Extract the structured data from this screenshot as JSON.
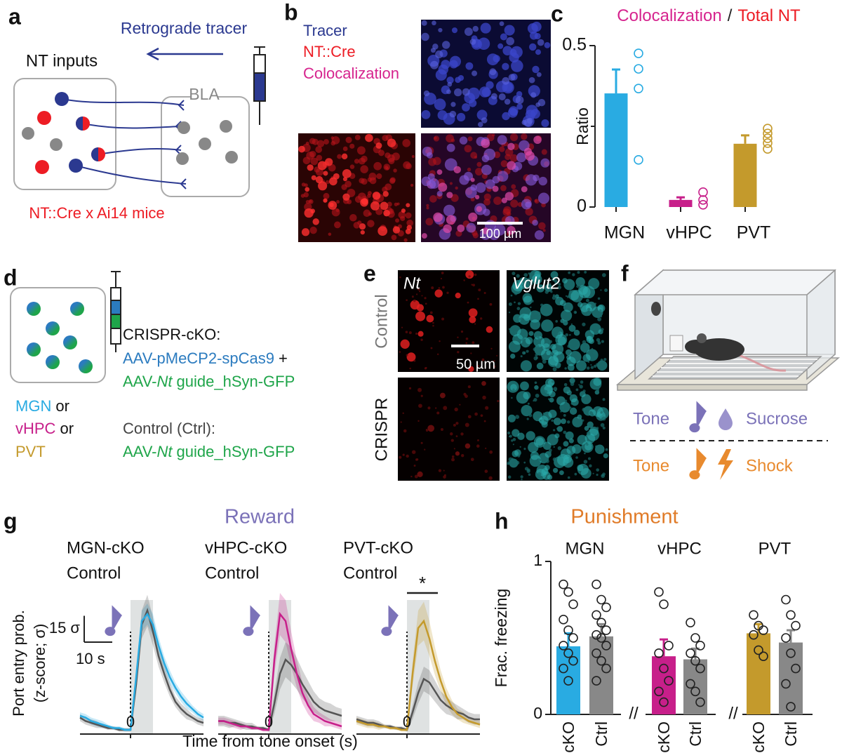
{
  "panels": {
    "a": {
      "label": "a",
      "tracer": "Retrograde tracer",
      "inputs": "NT inputs",
      "region": "BLA",
      "mice": "NT::Cre x Ai14 mice"
    },
    "b": {
      "label": "b",
      "legend": [
        "Tracer",
        "NT::Cre",
        "Colocalization"
      ],
      "scale": "100 µm"
    },
    "c": {
      "label": "c"
    },
    "d": {
      "label": "d",
      "cko": "CRISPR-cKO:",
      "cas9": "AAV-pMeCP2-spCas9",
      "plus": "+",
      "guide": [
        "AAV-",
        "Nt",
        "guide_hSyn-GFP"
      ],
      "regions": [
        "MGN",
        "vHPC",
        "PVT"
      ],
      "or": "or",
      "control": "Control (Ctrl):"
    },
    "e": {
      "label": "e",
      "genes": [
        "Nt",
        "Vglut2"
      ],
      "rows": [
        "Control",
        "CRISPR"
      ],
      "scale": "50 µm"
    },
    "f": {
      "label": "f",
      "tone": "Tone",
      "sucrose": "Sucrose",
      "shock": "Shock"
    },
    "g": {
      "label": "g",
      "title": "Reward",
      "xlabel": "Time from tone onset (s)",
      "ylabel": [
        "Port entry prob.",
        "(z-score; σ)"
      ]
    },
    "h": {
      "label": "h",
      "title": "Punishment"
    }
  },
  "chart_data": [
    {
      "type": "bar",
      "title_parts": [
        {
          "text": "Colocalization",
          "color": "#d6248e"
        },
        {
          "text": "/",
          "color": "#222222"
        },
        {
          "text": "Total NT",
          "color": "#ed1c24"
        }
      ],
      "categories": [
        "MGN",
        "vHPC",
        "PVT"
      ],
      "colors": [
        "#29abe2",
        "#c71f8a",
        "#c49a2c"
      ],
      "values": [
        0.352,
        0.022,
        0.196
      ],
      "errors": [
        0.074,
        0.008,
        0.026
      ],
      "points": [
        [
          0.476,
          0.428,
          0.367,
          0.146
        ],
        [
          0.046,
          0.022,
          0.007
        ],
        [
          0.243,
          0.228,
          0.213,
          0.198,
          0.18
        ]
      ],
      "ylabel": "Ratio",
      "ylim": [
        0,
        0.5
      ],
      "yticks": [
        0,
        0.5
      ],
      "minor_yticks": [
        0.25
      ]
    },
    {
      "type": "line",
      "x": [
        -18,
        -16,
        -14,
        -12,
        -10,
        -8,
        -6,
        -4,
        -2,
        0,
        2,
        4,
        6,
        8,
        10,
        12,
        14,
        16,
        18,
        20,
        22,
        24,
        26
      ],
      "xlim": [
        -18,
        26
      ],
      "ylim": [
        -3,
        72
      ],
      "xticks": [
        0
      ],
      "tone_window": [
        0,
        8
      ],
      "series": [
        {
          "name": "MGN-cKO",
          "color": "#29abe2",
          "values": [
            8,
            7,
            5,
            4,
            3,
            2,
            1,
            1,
            0,
            0,
            30,
            62,
            66,
            60,
            48,
            38,
            30,
            24,
            19,
            15,
            12,
            9,
            7
          ],
          "errors": [
            2,
            2,
            2,
            2,
            2,
            1,
            1,
            1,
            1,
            1,
            4,
            6,
            6,
            6,
            5,
            4,
            4,
            3,
            3,
            3,
            2,
            2,
            2
          ]
        },
        {
          "name": "Control",
          "color": "#555555",
          "values": [
            7,
            5,
            4,
            3,
            2,
            1,
            1,
            0,
            0,
            0,
            26,
            60,
            68,
            56,
            42,
            32,
            23,
            16,
            12,
            9,
            7,
            5,
            4
          ],
          "errors": [
            2,
            2,
            2,
            2,
            1,
            1,
            1,
            1,
            1,
            1,
            5,
            8,
            9,
            8,
            6,
            5,
            4,
            3,
            3,
            3,
            2,
            2,
            2
          ]
        }
      ],
      "scalebar": {
        "y": 15,
        "y_label": "15 σ",
        "x": 10,
        "x_label": "10 s"
      }
    },
    {
      "type": "line",
      "x": [
        -18,
        -16,
        -14,
        -12,
        -10,
        -8,
        -6,
        -4,
        -2,
        0,
        2,
        4,
        6,
        8,
        10,
        12,
        14,
        16,
        18,
        20,
        22,
        24,
        26
      ],
      "xlim": [
        -18,
        26
      ],
      "ylim": [
        -3,
        72
      ],
      "xticks": [
        0
      ],
      "tone_window": [
        0,
        8
      ],
      "series": [
        {
          "name": "vHPC-cKO",
          "color": "#c71f8a",
          "values": [
            5,
            5,
            4,
            3,
            2,
            2,
            1,
            1,
            0,
            0,
            40,
            66,
            62,
            46,
            32,
            21,
            14,
            9,
            7,
            5,
            4,
            3,
            2
          ],
          "errors": [
            2,
            2,
            2,
            2,
            2,
            1,
            1,
            1,
            1,
            1,
            8,
            12,
            12,
            10,
            8,
            6,
            5,
            4,
            3,
            3,
            2,
            2,
            2
          ]
        },
        {
          "name": "Control",
          "color": "#555555",
          "values": [
            5,
            5,
            4,
            4,
            3,
            2,
            2,
            1,
            1,
            0,
            15,
            32,
            40,
            37,
            32,
            26,
            21,
            16,
            13,
            11,
            10,
            9,
            8
          ],
          "errors": [
            3,
            3,
            3,
            2,
            2,
            2,
            2,
            1,
            1,
            1,
            6,
            9,
            10,
            10,
            9,
            8,
            7,
            6,
            5,
            5,
            5,
            4,
            4
          ]
        }
      ]
    },
    {
      "type": "line",
      "x": [
        -18,
        -16,
        -14,
        -12,
        -10,
        -8,
        -6,
        -4,
        -2,
        0,
        2,
        4,
        6,
        8,
        10,
        12,
        14,
        16,
        18,
        20,
        22,
        24,
        26
      ],
      "xlim": [
        -18,
        26
      ],
      "ylim": [
        -3,
        72
      ],
      "xticks": [
        0
      ],
      "tone_window": [
        0,
        8
      ],
      "series": [
        {
          "name": "PVT-cKO",
          "color": "#c49a2c",
          "values": [
            5,
            4,
            3,
            3,
            2,
            2,
            1,
            1,
            0,
            0,
            32,
            58,
            62,
            52,
            39,
            28,
            19,
            13,
            9,
            7,
            5,
            4,
            3
          ],
          "errors": [
            2,
            2,
            2,
            2,
            2,
            1,
            1,
            1,
            1,
            1,
            7,
            10,
            11,
            10,
            8,
            6,
            5,
            4,
            3,
            3,
            2,
            2,
            2
          ]
        },
        {
          "name": "Control",
          "color": "#555555",
          "values": [
            6,
            5,
            4,
            4,
            3,
            2,
            2,
            1,
            1,
            0,
            10,
            21,
            29,
            27,
            22,
            17,
            14,
            12,
            10,
            9,
            7,
            6,
            6
          ],
          "errors": [
            2,
            2,
            2,
            2,
            2,
            1,
            1,
            1,
            1,
            1,
            4,
            6,
            7,
            7,
            6,
            5,
            5,
            4,
            4,
            3,
            3,
            3,
            3
          ]
        }
      ],
      "significance": "*"
    },
    {
      "type": "bar",
      "title": "MGN",
      "categories": [
        "cKO",
        "Ctrl"
      ],
      "colors": [
        "#29abe2",
        "#888888"
      ],
      "values": [
        0.445,
        0.51
      ],
      "errors": [
        0.085,
        0.08
      ],
      "points": [
        [
          0.85,
          0.8,
          0.72,
          0.62,
          0.55,
          0.5,
          0.45,
          0.4,
          0.35,
          0.3,
          0.22
        ],
        [
          0.85,
          0.75,
          0.7,
          0.65,
          0.6,
          0.55,
          0.52,
          0.5,
          0.45,
          0.4,
          0.35,
          0.3,
          0.22
        ]
      ],
      "ylabel": "Frac. freezing",
      "ylim": [
        0,
        1
      ],
      "yticks": [
        0,
        1
      ]
    },
    {
      "type": "bar",
      "title": "vHPC",
      "categories": [
        "cKO",
        "Ctrl"
      ],
      "colors": [
        "#c71f8a",
        "#888888"
      ],
      "values": [
        0.38,
        0.36
      ],
      "errors": [
        0.11,
        0.07
      ],
      "points": [
        [
          0.8,
          0.72,
          0.45,
          0.4,
          0.3,
          0.22,
          0.15,
          0.08
        ],
        [
          0.6,
          0.5,
          0.45,
          0.4,
          0.35,
          0.3,
          0.2,
          0.15,
          0.08
        ]
      ],
      "ylim": [
        0,
        1
      ]
    },
    {
      "type": "bar",
      "title": "PVT",
      "categories": [
        "cKO",
        "Ctrl"
      ],
      "colors": [
        "#c49a2c",
        "#888888"
      ],
      "values": [
        0.53,
        0.47
      ],
      "errors": [
        0.06,
        0.08
      ],
      "points": [
        [
          0.65,
          0.58,
          0.55,
          0.52,
          0.42,
          0.38
        ],
        [
          0.75,
          0.65,
          0.58,
          0.5,
          0.4,
          0.3,
          0.2,
          0.05
        ]
      ],
      "ylim": [
        0,
        1
      ]
    }
  ]
}
